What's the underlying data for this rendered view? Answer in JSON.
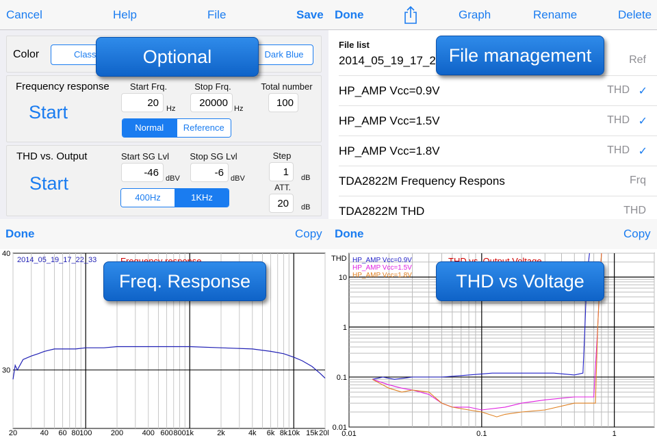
{
  "q1": {
    "nav": {
      "cancel": "Cancel",
      "help": "Help",
      "file": "File",
      "save": "Save"
    },
    "color": {
      "label": "Color",
      "options": [
        "Classic",
        "Dark Blue"
      ]
    },
    "callout": "Optional",
    "freq": {
      "title": "Frequency response",
      "start": "Start",
      "start_frq_label": "Start Frq.",
      "start_frq": "20",
      "stop_frq_label": "Stop Frq.",
      "stop_frq": "20000",
      "total_label": "Total number",
      "total": "100",
      "unit_hz": "Hz",
      "seg": [
        "Normal",
        "Reference"
      ],
      "seg_selected": "Normal"
    },
    "thd": {
      "title": "THD vs. Output",
      "start": "Start",
      "start_sg_label": "Start SG Lvl",
      "start_sg": "-46",
      "stop_sg_label": "Stop SG Lvl",
      "stop_sg": "-6",
      "unit_dbv": "dBV",
      "step_label": "Step",
      "step": "1",
      "unit_db": "dB",
      "att_label": "ATT.",
      "att": "20",
      "seg": [
        "400Hz",
        "1KHz"
      ],
      "seg_selected": "1KHz"
    }
  },
  "q2": {
    "nav": {
      "done": "Done",
      "graph": "Graph",
      "rename": "Rename",
      "delete": "Delete",
      "share_icon": "share-icon"
    },
    "list_header": "File list",
    "callout": "File management",
    "files": [
      {
        "name": "2014_05_19_17_24",
        "tag": "Ref",
        "checked": false
      },
      {
        "name": "HP_AMP Vcc=0.9V",
        "tag": "THD",
        "checked": true
      },
      {
        "name": "HP_AMP Vcc=1.5V",
        "tag": "THD",
        "checked": true
      },
      {
        "name": "HP_AMP Vcc=1.8V",
        "tag": "THD",
        "checked": true
      },
      {
        "name": "TDA2822M Frequency Respons",
        "tag": "Frq",
        "checked": false
      },
      {
        "name": "TDA2822M THD",
        "tag": "THD",
        "checked": false
      }
    ],
    "check_glyph": "✓"
  },
  "q3": {
    "nav": {
      "done": "Done",
      "copy": "Copy"
    },
    "callout": "Freq. Response",
    "chart_data": {
      "type": "line",
      "legend": "2014_05_19_17_22_33",
      "title": "Frequency response",
      "x_scale": "log",
      "xlim": [
        20,
        20000
      ],
      "ylim": [
        25,
        40
      ],
      "y_ticks": [
        "40",
        "30"
      ],
      "x_ticks": [
        "20",
        "40",
        "60",
        "80",
        "100",
        "200",
        "400",
        "600",
        "800",
        "1k",
        "2k",
        "4k",
        "6k",
        "8k",
        "10k",
        "15k",
        "20k"
      ],
      "series": [
        {
          "color": "#1f1fb4",
          "x": [
            20,
            21,
            22,
            25,
            30,
            35,
            40,
            50,
            60,
            80,
            100,
            150,
            200,
            400,
            800,
            1000,
            2000,
            4000,
            6000,
            8000,
            10000,
            12000,
            15000,
            18000,
            20000
          ],
          "y": [
            29.2,
            30.4,
            30.0,
            30.9,
            31.2,
            31.4,
            31.6,
            31.8,
            31.8,
            31.8,
            31.9,
            31.9,
            32.0,
            32.0,
            32.0,
            32.0,
            31.9,
            31.8,
            31.6,
            31.4,
            31.1,
            30.8,
            30.3,
            29.7,
            29.3
          ]
        }
      ]
    }
  },
  "q4": {
    "nav": {
      "done": "Done",
      "copy": "Copy"
    },
    "callout": "THD vs Voltage",
    "chart_data": {
      "type": "line",
      "title": "THD vs. Output Voltage",
      "ylabel": "THD",
      "x_scale": "log",
      "y_scale": "log",
      "xlim": [
        0.01,
        2
      ],
      "ylim": [
        0.01,
        30
      ],
      "x_ticks": [
        "0.01",
        "0.1",
        "1"
      ],
      "y_ticks": [
        "10",
        "1",
        "0.1",
        "0.01"
      ],
      "series": [
        {
          "name": "HP_AMP Vcc=0.9V",
          "color": "#1f1fc8",
          "x": [
            0.015,
            0.018,
            0.022,
            0.03,
            0.05,
            0.08,
            0.12,
            0.2,
            0.35,
            0.5,
            0.58,
            0.6,
            0.62,
            0.65
          ],
          "y": [
            0.09,
            0.1,
            0.09,
            0.1,
            0.1,
            0.11,
            0.12,
            0.12,
            0.12,
            0.11,
            0.12,
            1,
            10,
            30
          ]
        },
        {
          "name": "HP_AMP Vcc=1.5V",
          "color": "#e020e0",
          "x": [
            0.015,
            0.02,
            0.025,
            0.03,
            0.04,
            0.05,
            0.06,
            0.08,
            0.1,
            0.15,
            0.2,
            0.3,
            0.5,
            0.7,
            0.75,
            0.78,
            0.8
          ],
          "y": [
            0.09,
            0.07,
            0.06,
            0.055,
            0.045,
            0.03,
            0.025,
            0.025,
            0.022,
            0.025,
            0.03,
            0.035,
            0.04,
            0.04,
            1,
            10,
            30
          ]
        },
        {
          "name": "HP_AMP Vcc=1.8V",
          "color": "#e08020",
          "x": [
            0.015,
            0.02,
            0.025,
            0.03,
            0.04,
            0.05,
            0.06,
            0.08,
            0.1,
            0.13,
            0.15,
            0.2,
            0.3,
            0.5,
            0.72,
            0.75,
            0.78,
            0.8
          ],
          "y": [
            0.09,
            0.06,
            0.05,
            0.055,
            0.05,
            0.03,
            0.025,
            0.022,
            0.02,
            0.016,
            0.018,
            0.02,
            0.022,
            0.03,
            0.03,
            1,
            10,
            30
          ]
        }
      ]
    }
  }
}
